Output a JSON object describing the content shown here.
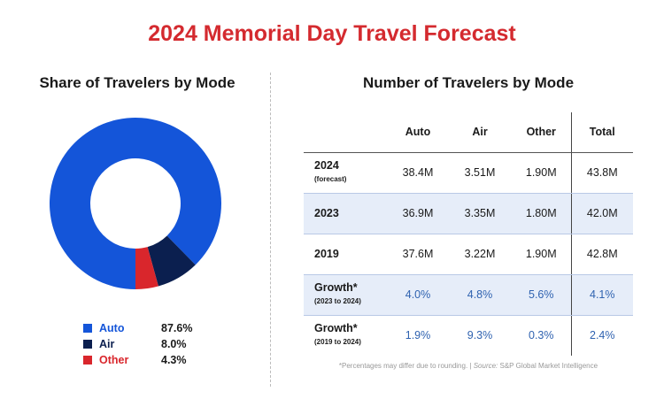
{
  "title": "2024 Memorial Day Travel Forecast",
  "left_title": "Share of Travelers by Mode",
  "right_title": "Number of Travelers by Mode",
  "chart_data": {
    "type": "pie",
    "title": "Share of Travelers by Mode",
    "donut": true,
    "legend_position": "bottom",
    "slices": [
      {
        "label": "Auto",
        "value": 87.6,
        "display": "87.6%",
        "color": "#1455d9"
      },
      {
        "label": "Air",
        "value": 8.0,
        "display": "8.0%",
        "color": "#0b1f4f"
      },
      {
        "label": "Other",
        "value": 4.3,
        "display": "4.3%",
        "color": "#d9262c"
      }
    ]
  },
  "table": {
    "headers": [
      "",
      "Auto",
      "Air",
      "Other",
      "Total"
    ],
    "rows": [
      {
        "label": "2024",
        "sub": "(forecast)",
        "values": [
          "38.4M",
          "3.51M",
          "1.90M",
          "43.8M"
        ]
      },
      {
        "label": "2023",
        "sub": "",
        "values": [
          "36.9M",
          "3.35M",
          "1.80M",
          "42.0M"
        ]
      },
      {
        "label": "2019",
        "sub": "",
        "values": [
          "37.6M",
          "3.22M",
          "1.90M",
          "42.8M"
        ]
      },
      {
        "label": "Growth*",
        "sub": "(2023 to 2024)",
        "values": [
          "4.0%",
          "4.8%",
          "5.6%",
          "4.1%"
        ]
      },
      {
        "label": "Growth*",
        "sub": "(2019 to 2024)",
        "values": [
          "1.9%",
          "9.3%",
          "0.3%",
          "2.4%"
        ]
      }
    ]
  },
  "footnote": {
    "text": "*Percentages may differ due to rounding. | ",
    "source_label": "Source:",
    "source": " S&P Global Market Intelligence"
  }
}
